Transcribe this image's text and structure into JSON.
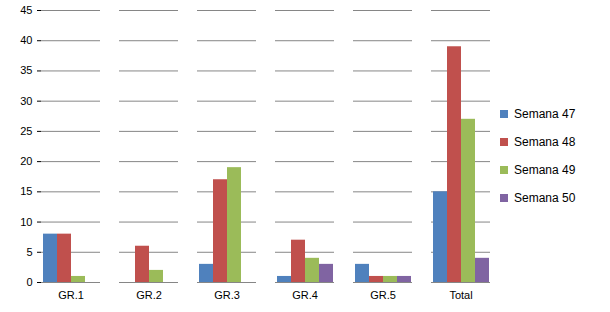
{
  "chart_data": {
    "type": "bar",
    "categories": [
      "GR.1",
      "GR.2",
      "GR.3",
      "GR.4",
      "GR.5",
      "Total"
    ],
    "series": [
      {
        "name": "Semana 47",
        "color": "#4F81BD",
        "values": [
          8,
          0,
          3,
          1,
          3,
          15
        ]
      },
      {
        "name": "Semana 48",
        "color": "#C0504D",
        "values": [
          8,
          6,
          17,
          7,
          1,
          39
        ]
      },
      {
        "name": "Semana 49",
        "color": "#9BBB59",
        "values": [
          1,
          2,
          19,
          4,
          1,
          27
        ]
      },
      {
        "name": "Semana 50",
        "color": "#8064A2",
        "values": [
          0,
          0,
          0,
          3,
          1,
          4
        ]
      }
    ],
    "ylim": [
      0,
      45
    ],
    "yticks": [
      0,
      5,
      10,
      15,
      20,
      25,
      30,
      35,
      40,
      45
    ],
    "grid": true,
    "legend": "right"
  }
}
